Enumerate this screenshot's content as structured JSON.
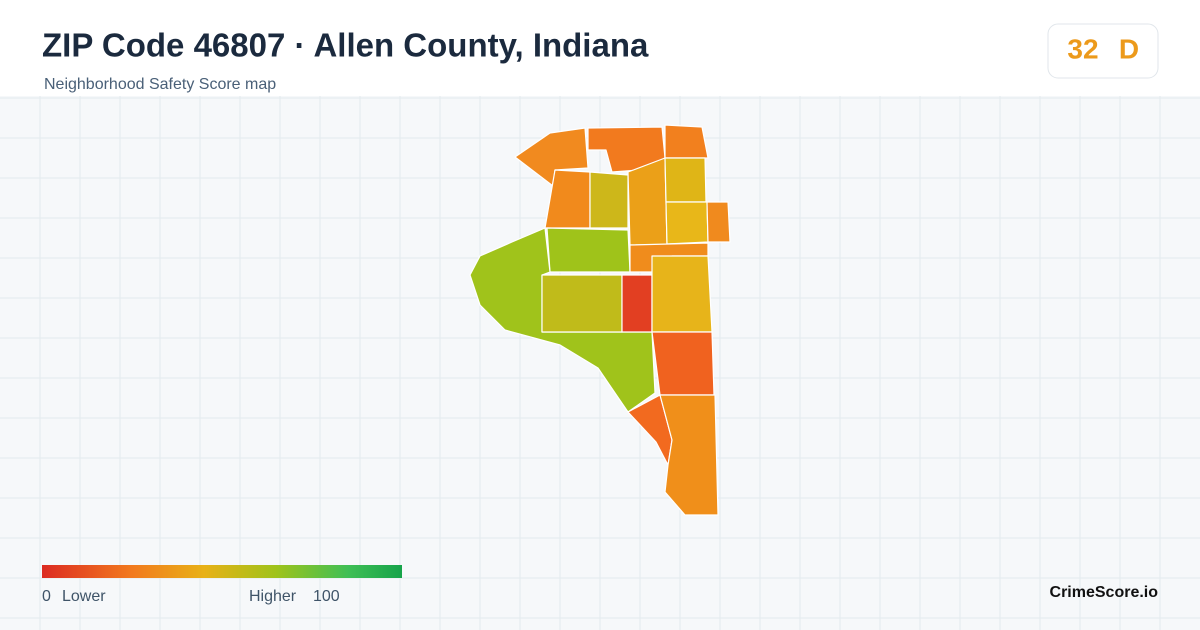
{
  "header": {
    "title": "ZIP Code 46807 · Allen County, Indiana",
    "subtitle": "Neighborhood Safety Score map"
  },
  "score_badge": {
    "score": "32",
    "grade": "D"
  },
  "legend": {
    "min": "0",
    "min_label": "Lower",
    "max_label": "Higher",
    "max": "100"
  },
  "brand": "CrimeScore.io"
}
